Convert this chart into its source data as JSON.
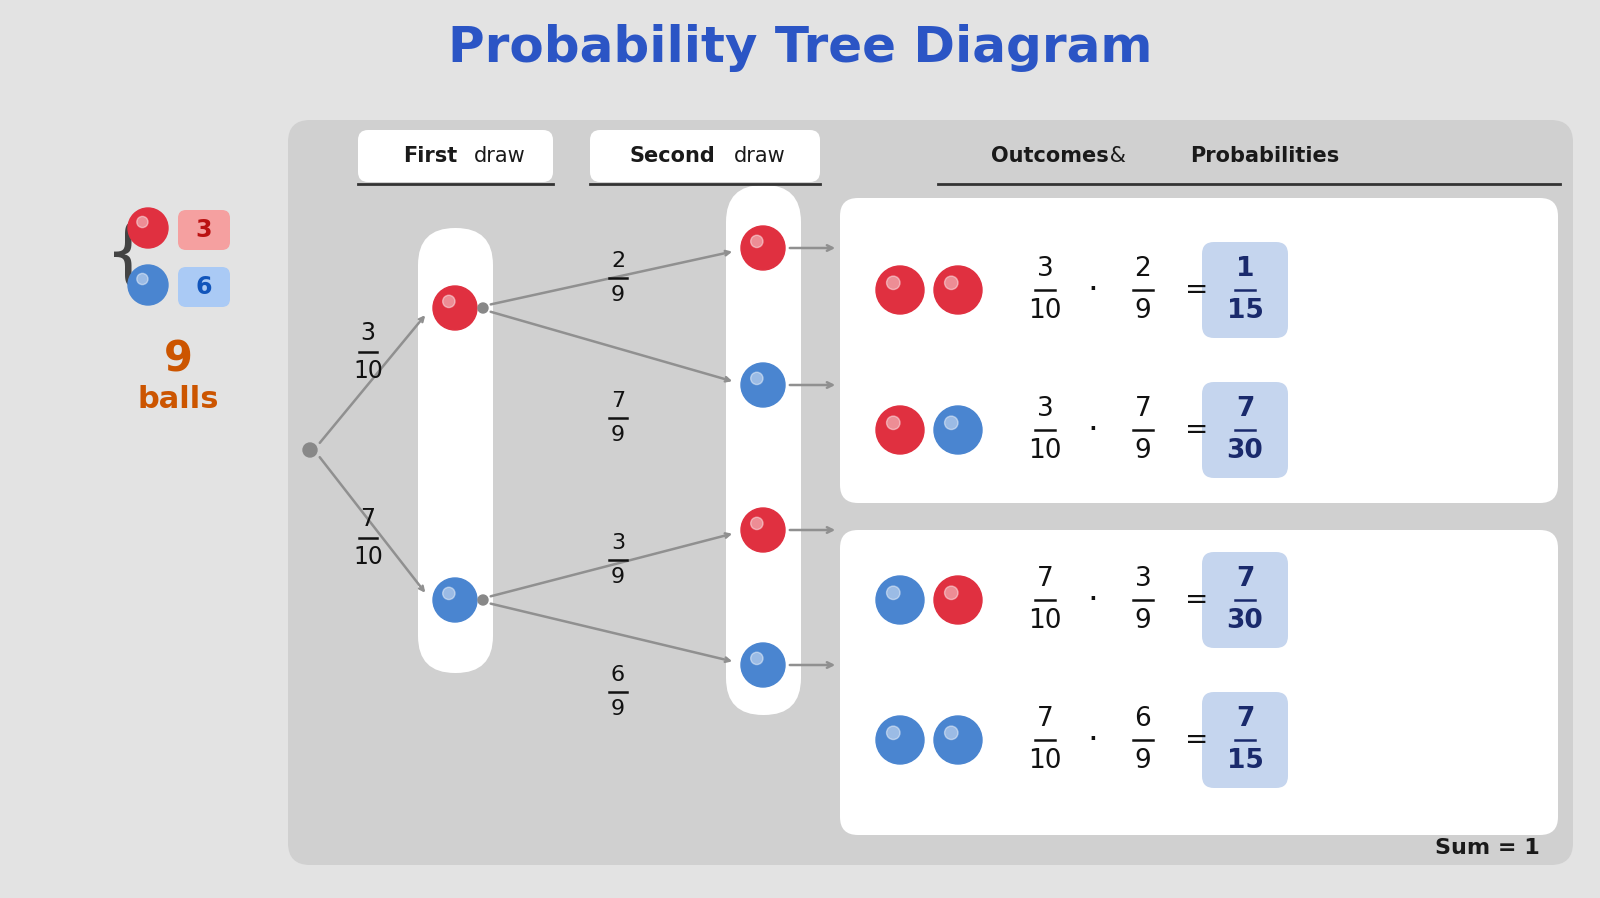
{
  "title": "Probability Tree Diagram",
  "title_color": "#2B55C5",
  "bg_color": "#E3E3E3",
  "panel_bg": "#D4D4D4",
  "white": "#FFFFFF",
  "blue_highlight": "#C5D5EE",
  "red_ball": "#E03040",
  "blue_ball": "#4A85D0",
  "text_color": "#1A1A1A",
  "arrow_color": "#909090",
  "orange_text": "#CC5500",
  "red_box": "#F5AAAA",
  "blue_box": "#AAC8F0",
  "red_num_color": "#BB1111",
  "blue_num_color": "#1155BB",
  "result_color": "#1A2A6C",
  "sum_label": "Sum = 1",
  "fracs": {
    "r_to_fd_red": [
      "3",
      "10"
    ],
    "r_to_fd_blue": [
      "7",
      "10"
    ],
    "fd_red_to_rr": [
      "2",
      "9"
    ],
    "fd_red_to_rb": [
      "7",
      "9"
    ],
    "fd_blue_to_br": [
      "3",
      "9"
    ],
    "fd_blue_to_bb": [
      "6",
      "9"
    ]
  },
  "outcomes": [
    {
      "b1": "red",
      "b2": "red",
      "n1": "3",
      "d1": "10",
      "n2": "2",
      "d2": "9",
      "rn": "1",
      "rd": "15"
    },
    {
      "b1": "red",
      "b2": "blue",
      "n1": "3",
      "d1": "10",
      "n2": "7",
      "d2": "9",
      "rn": "7",
      "rd": "30"
    },
    {
      "b1": "blue",
      "b2": "red",
      "n1": "7",
      "d1": "10",
      "n2": "3",
      "d2": "9",
      "rn": "7",
      "rd": "30"
    },
    {
      "b1": "blue",
      "b2": "blue",
      "n1": "7",
      "d1": "10",
      "n2": "6",
      "d2": "9",
      "rn": "7",
      "rd": "15"
    }
  ]
}
